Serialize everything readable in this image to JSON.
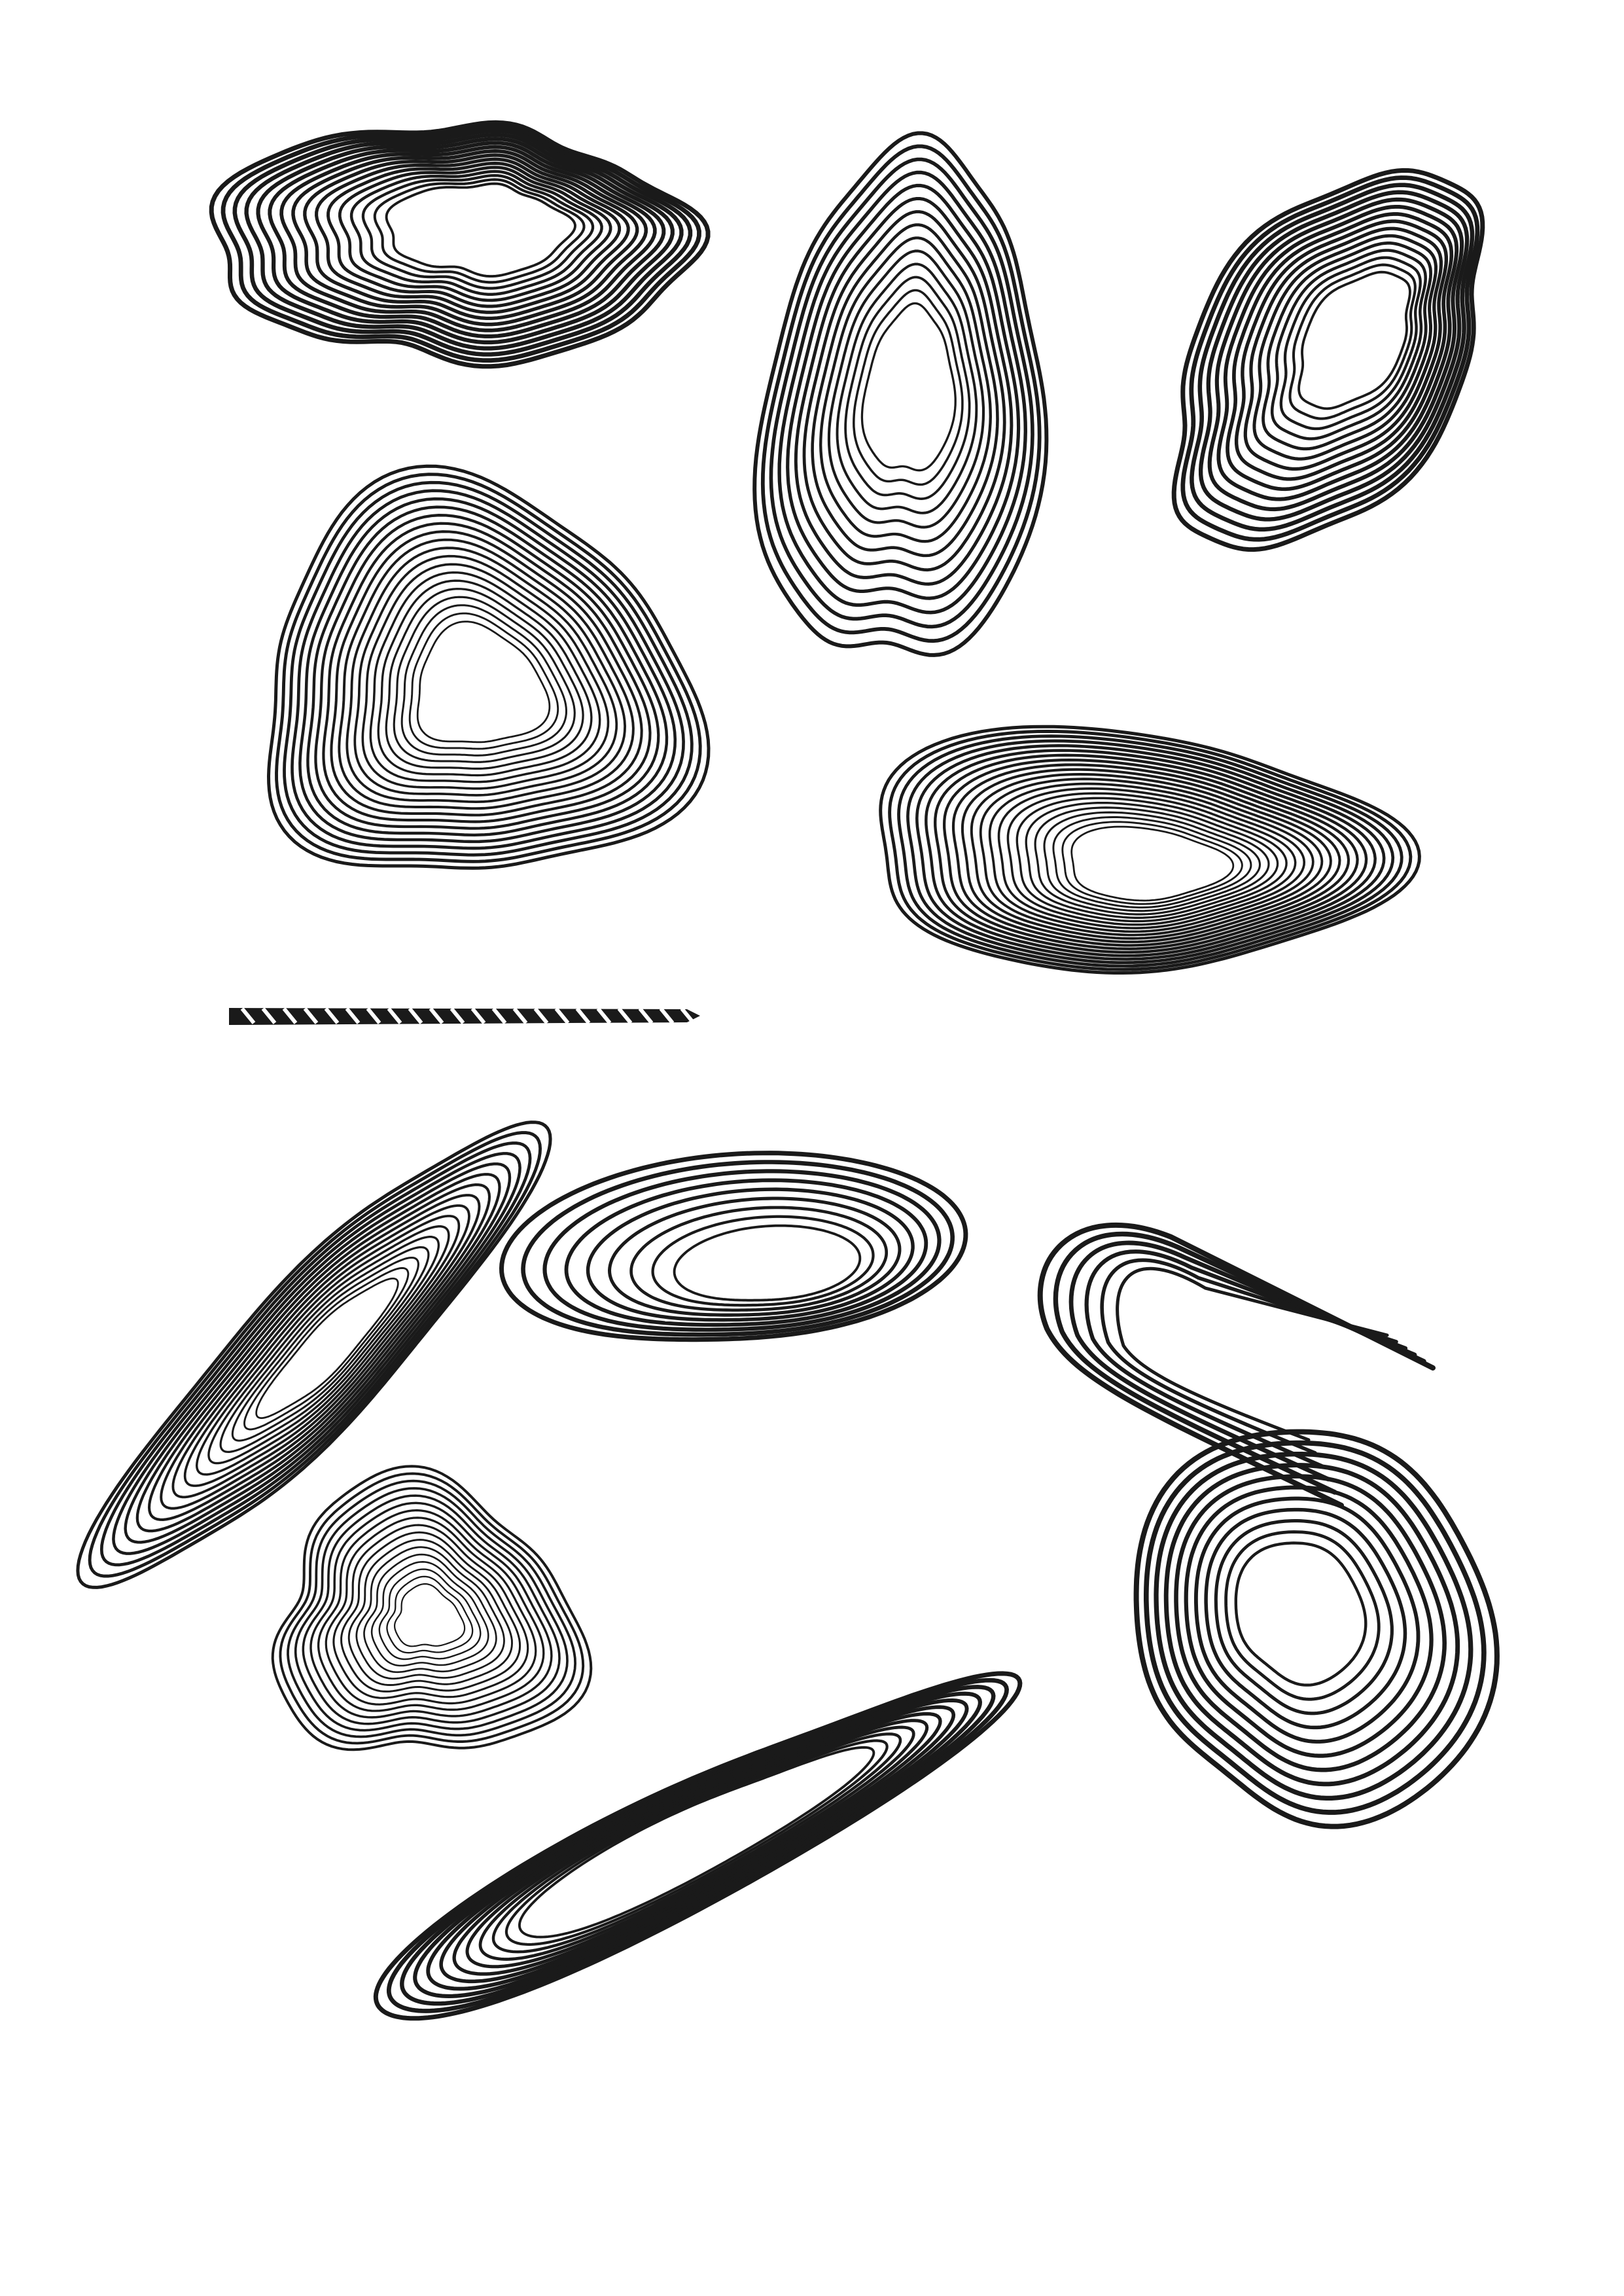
{
  "background": "#ffffff",
  "stroke_color": "#1a1a1a",
  "shapes": [
    {
      "name": "blob-top-left",
      "style": "wavy",
      "rings": 16
    },
    {
      "name": "blob-top-center",
      "style": "vertical-oval",
      "rings": 14
    },
    {
      "name": "blob-top-right",
      "style": "diagonal",
      "rings": 15
    },
    {
      "name": "blob-mid-left",
      "style": "heart",
      "rings": 20
    },
    {
      "name": "blob-mid-right",
      "style": "horizontal",
      "rings": 22
    },
    {
      "name": "divider-stripe",
      "style": "striped-bar",
      "rings": 0
    },
    {
      "name": "blob-bottom-left-diagonal",
      "style": "diagonal-bulge",
      "rings": 16
    },
    {
      "name": "blob-bottom-center-teardrop",
      "style": "teardrop",
      "rings": 9
    },
    {
      "name": "blob-bottom-right-open",
      "style": "open-loops",
      "rings": 6
    },
    {
      "name": "blob-bottom-left-small",
      "style": "small-heart",
      "rings": 17
    },
    {
      "name": "blob-bottom-right-rings",
      "style": "rings",
      "rings": 11
    },
    {
      "name": "blob-bottom-elongated",
      "style": "elongated",
      "rings": 12
    }
  ]
}
